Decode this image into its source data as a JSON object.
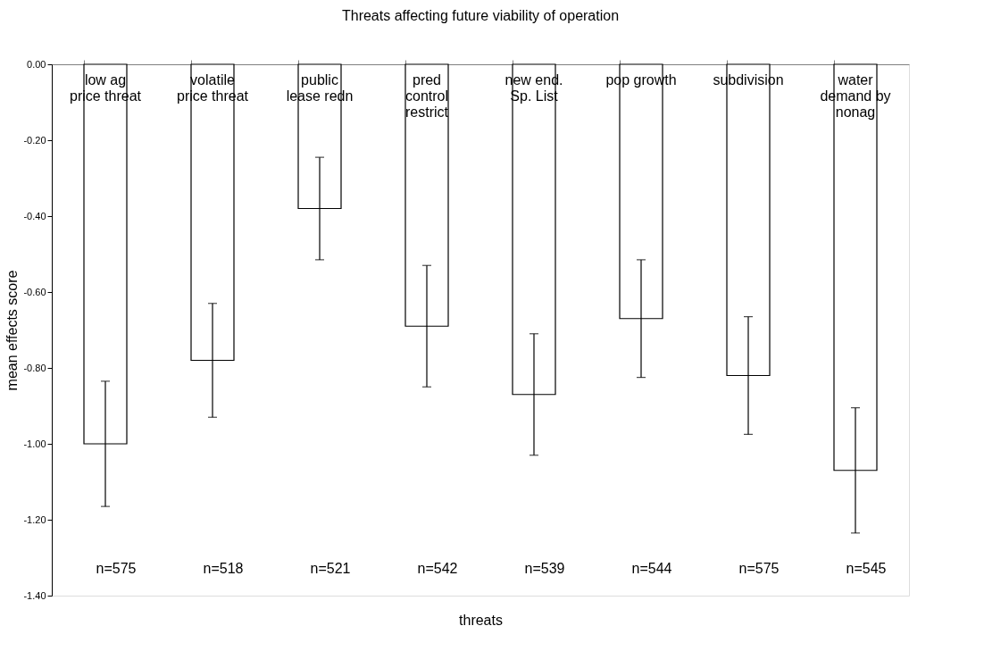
{
  "chart_data": {
    "type": "bar",
    "title": "Threats affecting future viability of operation",
    "xlabel": "threats",
    "ylabel": "mean effects score",
    "categories": [
      "low ag\nprice threat",
      "volatile\nprice threat",
      "public\nlease redn",
      "pred\ncontrol\nrestrict",
      "new end.\nSp. List",
      "pop growth",
      "subdivision",
      "water\ndemand by\nnonag"
    ],
    "values": [
      -1.0,
      -0.78,
      -0.38,
      -0.69,
      -0.87,
      -0.67,
      -0.82,
      -1.07
    ],
    "errors": [
      0.165,
      0.15,
      0.135,
      0.16,
      0.16,
      0.155,
      0.155,
      0.165
    ],
    "color": "#ffffff",
    "ylim": [
      -1.4,
      0.0
    ],
    "yticks": [
      {
        "value": -1.4,
        "label": "-1.40"
      },
      {
        "value": -1.2,
        "label": "-1.20"
      },
      {
        "value": -1.0,
        "label": "-1.00"
      },
      {
        "value": -0.8,
        "label": "-0.80"
      },
      {
        "value": -0.6,
        "label": "-0.60"
      },
      {
        "value": -0.4,
        "label": "-0.40"
      },
      {
        "value": -0.2,
        "label": "-0.20"
      },
      {
        "value": 0.0,
        "label": "0.00"
      }
    ],
    "grid": false,
    "annotations": [
      "n=575",
      "n=518",
      "n=521",
      "n=542",
      "n=539",
      "n=544",
      "n=575",
      "n=545"
    ]
  }
}
